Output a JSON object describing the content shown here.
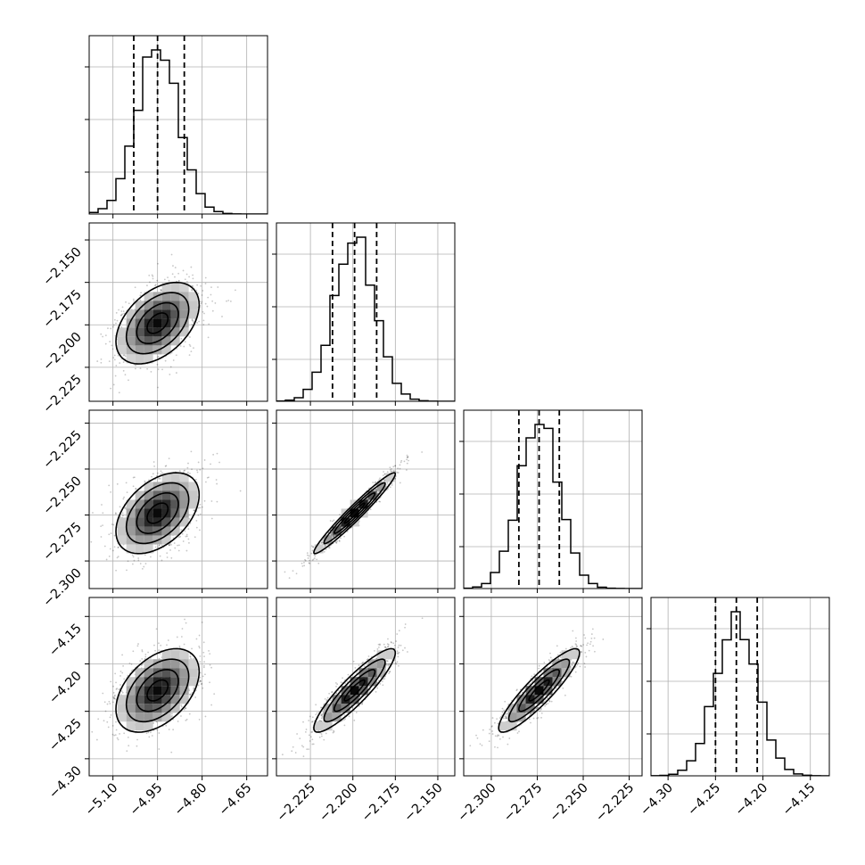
{
  "chart_data": {
    "type": "corner",
    "grid": true,
    "parameters": [
      {
        "range": [
          -5.18,
          -4.58
        ],
        "ticks": [
          -5.1,
          -4.95,
          -4.8,
          -4.65
        ],
        "tick_labels": [
          "−5.10",
          "−4.95",
          "−4.80",
          "−4.65"
        ],
        "mean": -4.95,
        "sd": 0.07,
        "quantiles": [
          -5.03,
          -4.95,
          -4.86
        ]
      },
      {
        "range": [
          -2.245,
          -2.14
        ],
        "ticks": [
          -2.225,
          -2.2,
          -2.175,
          -2.15
        ],
        "tick_labels": [
          "−2.225",
          "−2.200",
          "−2.175",
          "−2.150"
        ],
        "mean": -2.199,
        "sd": 0.012,
        "quantiles": [
          -2.212,
          -2.199,
          -2.186
        ]
      },
      {
        "range": [
          -2.315,
          -2.218
        ],
        "ticks": [
          -2.3,
          -2.275,
          -2.25,
          -2.225
        ],
        "tick_labels": [
          "−2.300",
          "−2.275",
          "−2.250",
          "−2.225"
        ],
        "mean": -2.274,
        "sd": 0.011,
        "quantiles": [
          -2.285,
          -2.274,
          -2.263
        ]
      },
      {
        "range": [
          -4.318,
          -4.13
        ],
        "ticks": [
          -4.3,
          -4.25,
          -4.2,
          -4.15
        ],
        "tick_labels": [
          "−4.30",
          "−4.25",
          "−4.20",
          "−4.15"
        ],
        "mean": -4.228,
        "sd": 0.022,
        "quantiles": [
          -4.25,
          -4.228,
          -4.206
        ]
      }
    ],
    "correlations": {
      "1_0": 0.45,
      "2_0": 0.45,
      "2_1": 0.97,
      "3_0": 0.45,
      "3_1": 0.9,
      "3_2": 0.9
    }
  }
}
